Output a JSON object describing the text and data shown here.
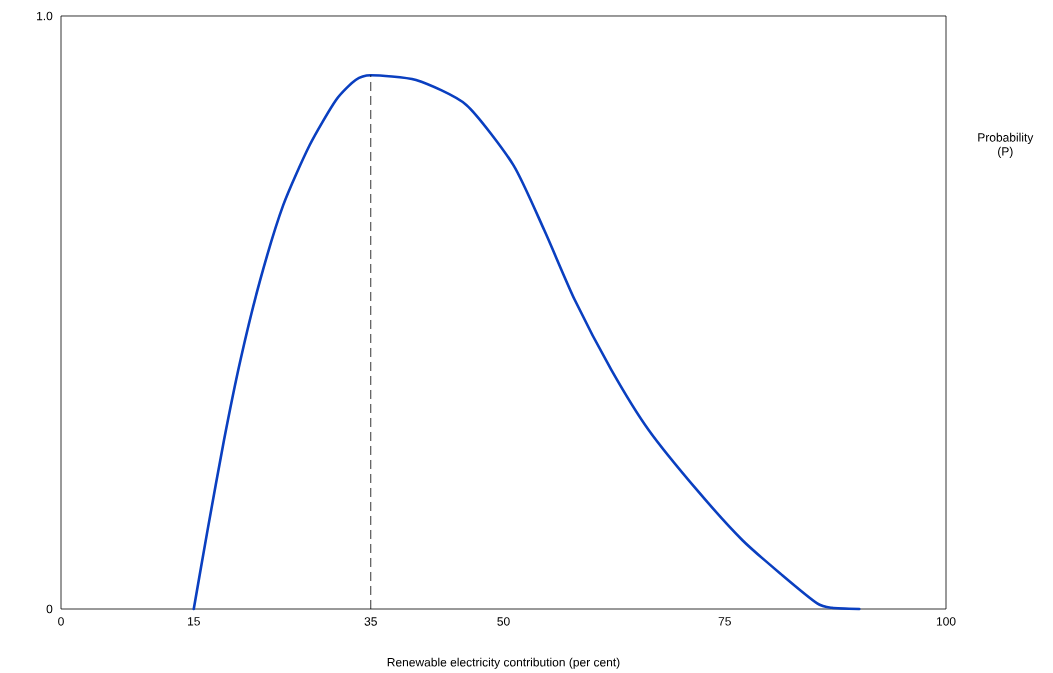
{
  "chart_data": {
    "type": "line",
    "xlabel": "Renewable electricity contribution (per cent)",
    "ylabel": "Probability (P)",
    "x": [
      15,
      16.56,
      18.42,
      20.28,
      22.51,
      25.11,
      28.09,
      31.06,
      33.29,
      35,
      40.12,
      45.8,
      51.1,
      54.6,
      58.06,
      62.2,
      66.4,
      71.9,
      77.0,
      81.5,
      85.4,
      87.1,
      90.2
    ],
    "values": [
      0,
      0.133,
      0.285,
      0.42,
      0.555,
      0.681,
      0.782,
      0.858,
      0.892,
      0.9,
      0.892,
      0.85,
      0.749,
      0.639,
      0.521,
      0.403,
      0.302,
      0.2,
      0.116,
      0.057,
      0.01,
      0.002,
      0
    ],
    "color": "#0a3fc0",
    "xlim": [
      0,
      100
    ],
    "ylim": [
      0,
      1
    ],
    "xticks": [
      0,
      15,
      35,
      50,
      75,
      100
    ],
    "yticks": [
      0,
      {
        "value": 1,
        "label": "1.0"
      }
    ],
    "ref_lines": [
      {
        "axis": "x",
        "value": 35,
        "line_style": "dashed",
        "color": "#000000"
      }
    ]
  }
}
